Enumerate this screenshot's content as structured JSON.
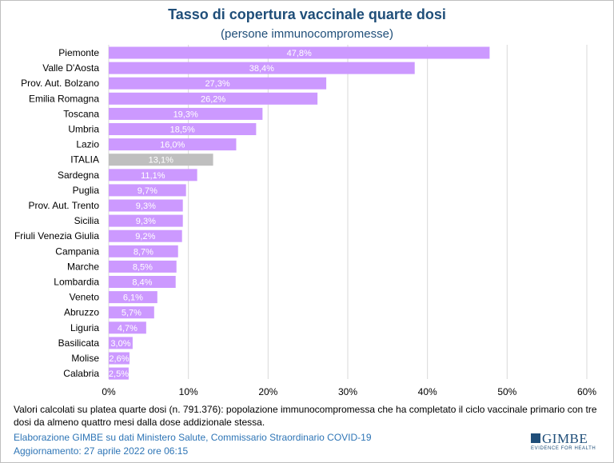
{
  "header": {
    "title": "Tasso di copertura vaccinale quarte dosi",
    "subtitle": "(persone immunocompromesse)"
  },
  "chart_data": {
    "type": "bar",
    "orientation": "horizontal",
    "title": "Tasso di copertura vaccinale quarte dosi",
    "subtitle": "(persone immunocompromesse)",
    "categories": [
      "Piemonte",
      "Valle D'Aosta",
      "Prov. Aut. Bolzano",
      "Emilia Romagna",
      "Toscana",
      "Umbria",
      "Lazio",
      "ITALIA",
      "Sardegna",
      "Puglia",
      "Prov. Aut. Trento",
      "Sicilia",
      "Friuli Venezia Giulia",
      "Campania",
      "Marche",
      "Lombardia",
      "Veneto",
      "Abruzzo",
      "Liguria",
      "Basilicata",
      "Molise",
      "Calabria"
    ],
    "values": [
      47.8,
      38.4,
      27.3,
      26.2,
      19.3,
      18.5,
      16.0,
      13.1,
      11.1,
      9.7,
      9.3,
      9.3,
      9.2,
      8.7,
      8.5,
      8.4,
      6.1,
      5.7,
      4.7,
      3.0,
      2.6,
      2.5
    ],
    "value_labels": [
      "47,8%",
      "38,4%",
      "27,3%",
      "26,2%",
      "19,3%",
      "18,5%",
      "16,0%",
      "13,1%",
      "11,1%",
      "9,7%",
      "9,3%",
      "9,3%",
      "9,2%",
      "8,7%",
      "8,5%",
      "8,4%",
      "6,1%",
      "5,7%",
      "4,7%",
      "3,0%",
      "2,6%",
      "2,5%"
    ],
    "highlight": "ITALIA",
    "xlim": [
      0,
      60
    ],
    "xticks": [
      "0%",
      "10%",
      "20%",
      "30%",
      "40%",
      "50%",
      "60%"
    ],
    "grid": true,
    "xlabel": "",
    "ylabel": "",
    "colors": {
      "bar": "#cc99ff",
      "highlight": "#bfbfbf",
      "grid": "#d9d9d9",
      "label": "#ffffff"
    }
  },
  "footer": {
    "note": "Valori calcolati su platea quarte dosi (n. 791.376): popolazione immunocompromessa che ha completato il ciclo vaccinale primario con tre dosi da almeno quattro mesi dalla dose addizionale stessa.",
    "source": "Elaborazione GIMBE su dati Ministero Salute, Commissario Straordinario COVID-19",
    "updated": "Aggiornamento: 27 aprile 2022 ore 06:15"
  },
  "logo": {
    "name": "GIMBE",
    "tagline": "EVIDENCE FOR HEALTH"
  }
}
